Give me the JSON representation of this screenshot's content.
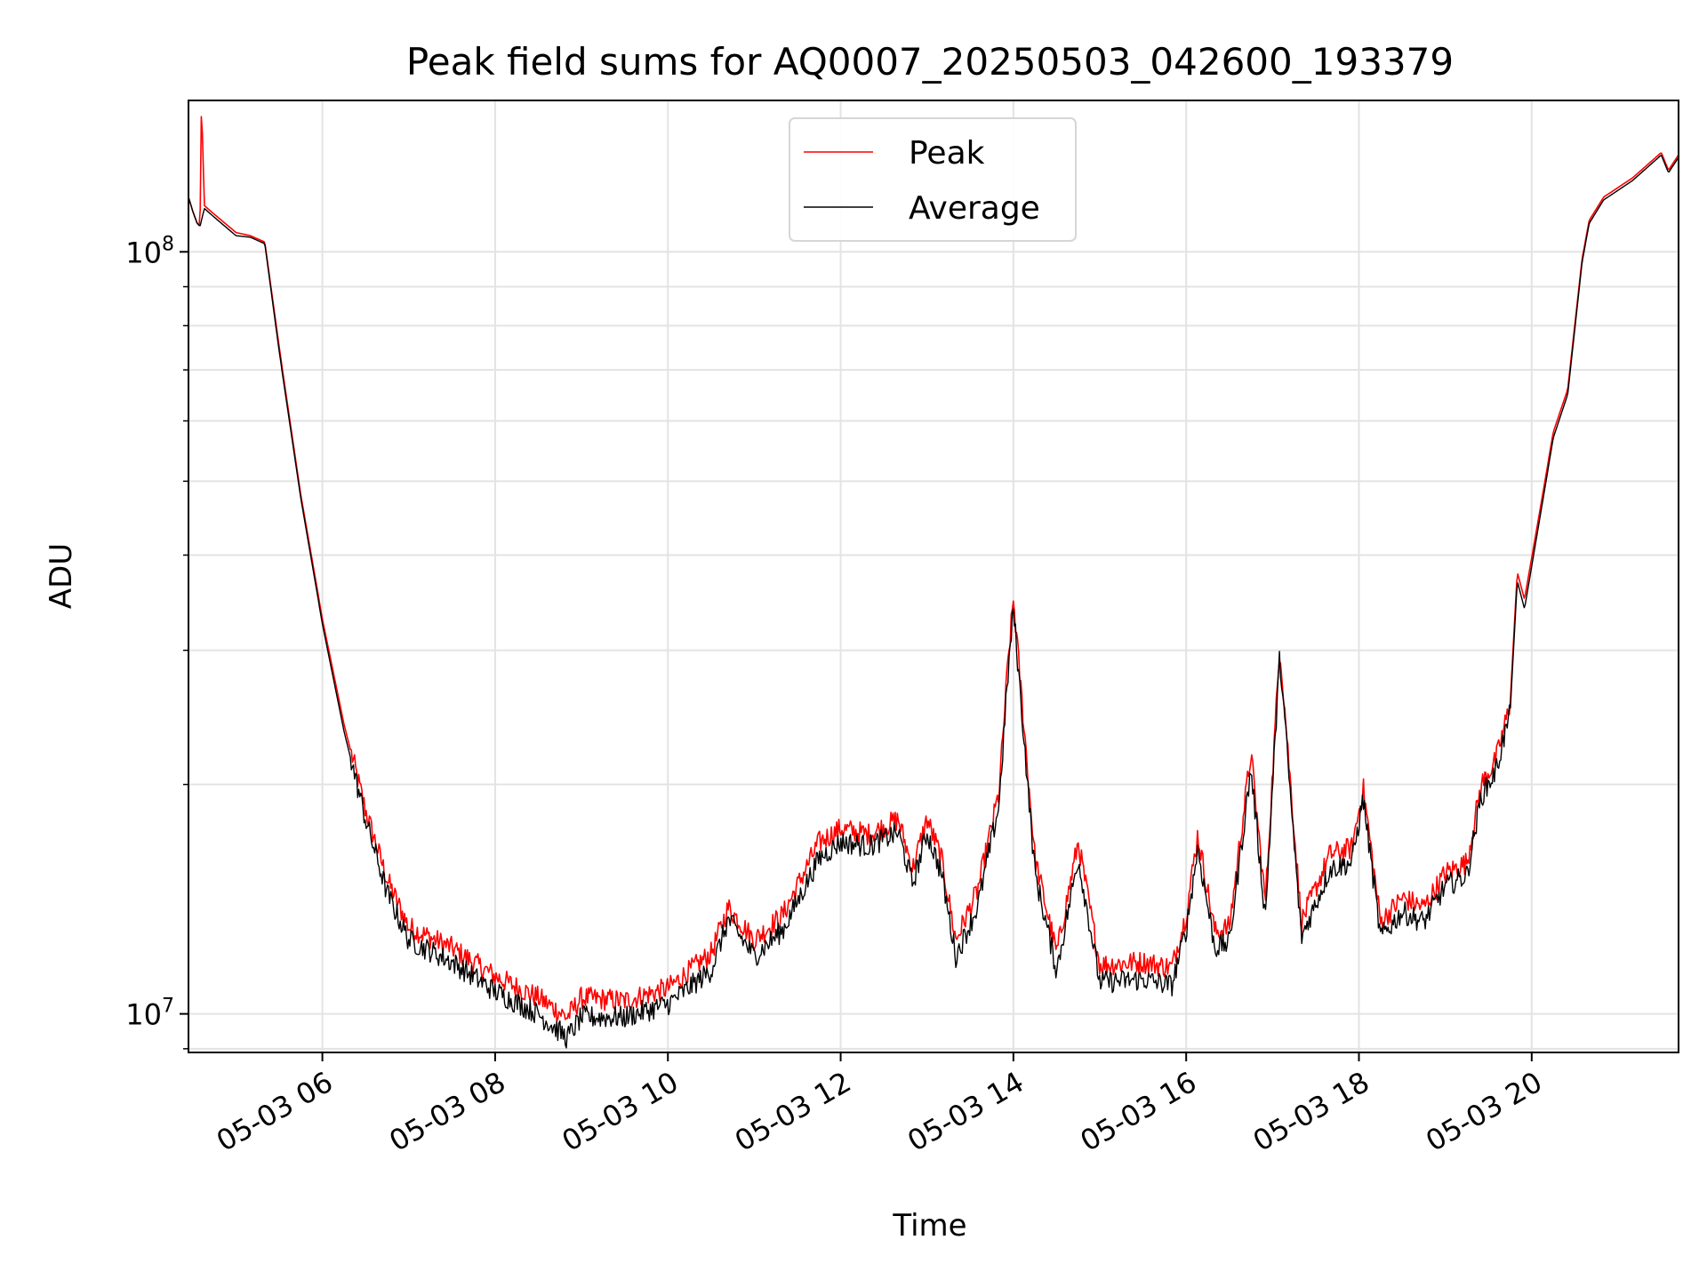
{
  "chart_data": {
    "type": "line",
    "title": "Peak field sums for AQ0007_20250503_042600_193379",
    "xlabel": "Time",
    "ylabel": "ADU",
    "yscale": "log",
    "ylim": [
      8900000,
      158000000
    ],
    "xlim": [
      "2025-05-03 04:27",
      "2025-05-03 21:42"
    ],
    "x_ticks": [
      "2025-05-03 06:00",
      "2025-05-03 08:00",
      "2025-05-03 10:00",
      "2025-05-03 12:00",
      "2025-05-03 14:00",
      "2025-05-03 16:00",
      "2025-05-03 18:00",
      "2025-05-03 20:00"
    ],
    "x_tick_labels": [
      "05-03 06",
      "05-03 08",
      "05-03 10",
      "05-03 12",
      "05-03 14",
      "05-03 16",
      "05-03 18",
      "05-03 20"
    ],
    "y_tick_values": [
      10000000,
      100000000
    ],
    "y_tick_labels": [
      {
        "base": "10",
        "exp": "7"
      },
      {
        "base": "10",
        "exp": "8"
      }
    ],
    "grid": true,
    "legend_position": "upper-center",
    "series": [
      {
        "name": "Peak",
        "color": "#ff0000",
        "x": [
          "2025-05-03 04:27",
          "2025-05-03 04:30",
          "2025-05-03 04:33",
          "2025-05-03 04:35",
          "2025-05-03 04:36",
          "2025-05-03 04:38",
          "2025-05-03 04:45",
          "2025-05-03 05:00",
          "2025-05-03 05:10",
          "2025-05-03 05:20",
          "2025-05-03 05:30",
          "2025-05-03 05:45",
          "2025-05-03 06:00",
          "2025-05-03 06:15",
          "2025-05-03 06:30",
          "2025-05-03 06:45",
          "2025-05-03 07:00",
          "2025-05-03 07:30",
          "2025-05-03 08:00",
          "2025-05-03 08:30",
          "2025-05-03 08:50",
          "2025-05-03 09:00",
          "2025-05-03 09:30",
          "2025-05-03 10:00",
          "2025-05-03 10:30",
          "2025-05-03 10:42",
          "2025-05-03 11:00",
          "2025-05-03 11:20",
          "2025-05-03 11:45",
          "2025-05-03 12:00",
          "2025-05-03 12:20",
          "2025-05-03 12:40",
          "2025-05-03 12:50",
          "2025-05-03 13:00",
          "2025-05-03 13:10",
          "2025-05-03 13:20",
          "2025-05-03 13:35",
          "2025-05-03 13:50",
          "2025-05-03 13:56",
          "2025-05-03 14:00",
          "2025-05-03 14:05",
          "2025-05-03 14:15",
          "2025-05-03 14:30",
          "2025-05-03 14:45",
          "2025-05-03 15:00",
          "2025-05-03 15:30",
          "2025-05-03 15:50",
          "2025-05-03 16:00",
          "2025-05-03 16:08",
          "2025-05-03 16:20",
          "2025-05-03 16:30",
          "2025-05-03 16:45",
          "2025-05-03 16:55",
          "2025-05-03 17:05",
          "2025-05-03 17:20",
          "2025-05-03 17:40",
          "2025-05-03 17:55",
          "2025-05-03 18:03",
          "2025-05-03 18:15",
          "2025-05-03 18:30",
          "2025-05-03 18:45",
          "2025-05-03 19:00",
          "2025-05-03 19:15",
          "2025-05-03 19:25",
          "2025-05-03 19:35",
          "2025-05-03 19:45",
          "2025-05-03 19:50",
          "2025-05-03 19:55",
          "2025-05-03 20:05",
          "2025-05-03 20:15",
          "2025-05-03 20:25",
          "2025-05-03 20:35",
          "2025-05-03 20:40",
          "2025-05-03 20:50",
          "2025-05-03 21:10",
          "2025-05-03 21:30",
          "2025-05-03 21:35",
          "2025-05-03 21:42"
        ],
        "y": [
          118000000,
          113000000,
          109000000,
          108000000,
          158000000,
          115000000,
          112000000,
          106000000,
          105000000,
          103000000,
          75000000,
          48000000,
          33000000,
          24000000,
          18500000,
          15000000,
          13000000,
          12200000,
          11200000,
          10500000,
          9900000,
          10500000,
          10400000,
          10800000,
          12000000,
          13800000,
          12500000,
          13500000,
          16800000,
          17500000,
          17200000,
          18000000,
          15500000,
          18000000,
          16000000,
          12500000,
          14500000,
          19500000,
          28500000,
          35000000,
          27000000,
          16000000,
          12000000,
          16800000,
          11600000,
          11700000,
          11500000,
          13500000,
          17200000,
          12800000,
          13000000,
          22000000,
          14000000,
          30500000,
          13200000,
          16200000,
          16500000,
          19800000,
          13200000,
          14200000,
          13800000,
          15300000,
          15800000,
          20000000,
          21500000,
          25500000,
          38000000,
          35000000,
          45000000,
          58000000,
          66000000,
          98000000,
          110000000,
          118000000,
          125000000,
          135000000,
          128000000,
          134000000
        ]
      },
      {
        "name": "Average",
        "color": "#000000",
        "x": [
          "2025-05-03 04:27",
          "2025-05-03 04:30",
          "2025-05-03 04:33",
          "2025-05-03 04:35",
          "2025-05-03 04:38",
          "2025-05-03 04:45",
          "2025-05-03 05:00",
          "2025-05-03 05:10",
          "2025-05-03 05:20",
          "2025-05-03 05:30",
          "2025-05-03 05:45",
          "2025-05-03 06:00",
          "2025-05-03 06:15",
          "2025-05-03 06:30",
          "2025-05-03 06:45",
          "2025-05-03 07:00",
          "2025-05-03 07:30",
          "2025-05-03 08:00",
          "2025-05-03 08:30",
          "2025-05-03 08:50",
          "2025-05-03 09:00",
          "2025-05-03 09:30",
          "2025-05-03 10:00",
          "2025-05-03 10:30",
          "2025-05-03 10:42",
          "2025-05-03 11:00",
          "2025-05-03 11:20",
          "2025-05-03 11:45",
          "2025-05-03 12:00",
          "2025-05-03 12:20",
          "2025-05-03 12:40",
          "2025-05-03 12:50",
          "2025-05-03 13:00",
          "2025-05-03 13:10",
          "2025-05-03 13:20",
          "2025-05-03 13:35",
          "2025-05-03 13:50",
          "2025-05-03 13:56",
          "2025-05-03 14:00",
          "2025-05-03 14:05",
          "2025-05-03 14:15",
          "2025-05-03 14:30",
          "2025-05-03 14:45",
          "2025-05-03 15:00",
          "2025-05-03 15:30",
          "2025-05-03 15:50",
          "2025-05-03 16:00",
          "2025-05-03 16:08",
          "2025-05-03 16:20",
          "2025-05-03 16:30",
          "2025-05-03 16:45",
          "2025-05-03 16:55",
          "2025-05-03 17:05",
          "2025-05-03 17:20",
          "2025-05-03 17:40",
          "2025-05-03 17:55",
          "2025-05-03 18:03",
          "2025-05-03 18:15",
          "2025-05-03 18:30",
          "2025-05-03 18:45",
          "2025-05-03 19:00",
          "2025-05-03 19:15",
          "2025-05-03 19:25",
          "2025-05-03 19:35",
          "2025-05-03 19:45",
          "2025-05-03 19:50",
          "2025-05-03 19:55",
          "2025-05-03 20:05",
          "2025-05-03 20:15",
          "2025-05-03 20:25",
          "2025-05-03 20:35",
          "2025-05-03 20:40",
          "2025-05-03 20:50",
          "2025-05-03 21:10",
          "2025-05-03 21:30",
          "2025-05-03 21:35",
          "2025-05-03 21:42"
        ],
        "y": [
          118000000,
          113000000,
          109000000,
          108000000,
          114000000,
          111000000,
          105000000,
          104500000,
          102500000,
          74000000,
          47500000,
          32500000,
          23500000,
          18000000,
          14400000,
          12500000,
          11700000,
          10700000,
          10000000,
          9300000,
          9900000,
          9900000,
          10300000,
          11400000,
          13300000,
          11900000,
          12900000,
          16000000,
          16800000,
          16600000,
          17300000,
          14800000,
          17300000,
          15300000,
          11900000,
          13800000,
          18800000,
          27500000,
          34000000,
          26000000,
          15300000,
          11400000,
          16000000,
          11000000,
          11100000,
          10900000,
          12900000,
          16500000,
          12200000,
          12400000,
          21000000,
          13400000,
          29500000,
          12600000,
          15500000,
          15800000,
          19200000,
          12600000,
          13600000,
          13200000,
          14700000,
          15200000,
          19300000,
          20800000,
          24800000,
          37000000,
          34000000,
          44000000,
          57000000,
          65000000,
          97000000,
          109000000,
          117000000,
          124000000,
          134000000,
          127000000,
          133000000
        ]
      }
    ]
  }
}
